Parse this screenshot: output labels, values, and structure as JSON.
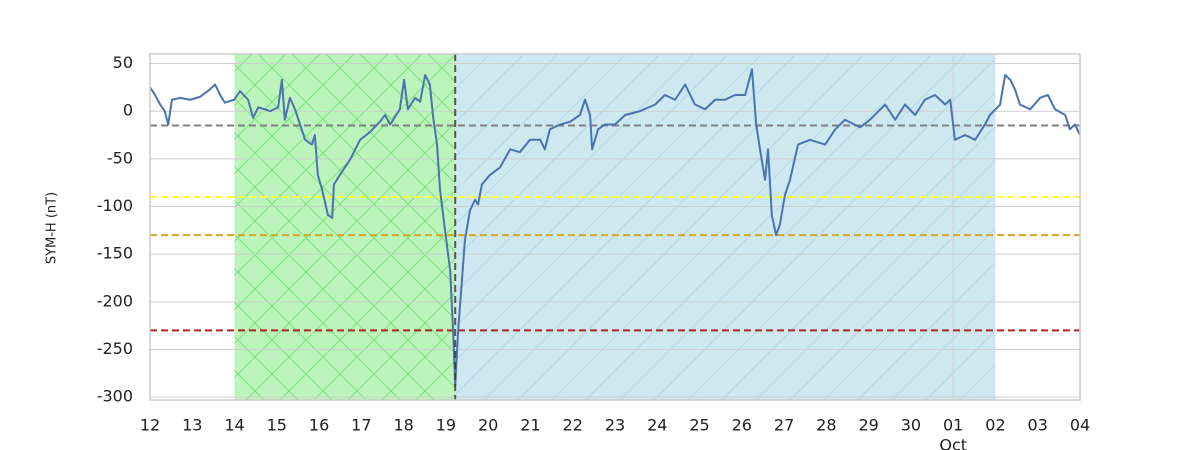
{
  "chart_data": {
    "type": "line",
    "y_label": "SYM-H (nT)",
    "x": [
      0,
      0.12,
      0.24,
      0.35,
      0.43,
      0.52,
      0.71,
      0.95,
      1.18,
      1.42,
      1.54,
      1.66,
      1.77,
      1.99,
      2.13,
      2.32,
      2.44,
      2.56,
      2.72,
      2.84,
      3.03,
      3.12,
      3.19,
      3.31,
      3.43,
      3.55,
      3.67,
      3.83,
      3.9,
      3.97,
      4.07,
      4.21,
      4.31,
      4.35,
      4.49,
      4.73,
      4.97,
      5.2,
      5.44,
      5.56,
      5.68,
      5.91,
      6.01,
      6.1,
      6.27,
      6.39,
      6.51,
      6.62,
      6.7,
      6.79,
      6.86,
      6.98,
      7.1,
      7.17,
      7.22,
      7.29,
      7.38,
      7.45,
      7.57,
      7.69,
      7.76,
      7.85,
      8.04,
      8.28,
      8.52,
      8.75,
      8.99,
      9.23,
      9.34,
      9.46,
      9.7,
      9.94,
      10.17,
      10.29,
      10.41,
      10.46,
      10.6,
      10.76,
      11,
      11.24,
      11.59,
      11.95,
      12.18,
      12.42,
      12.66,
      12.89,
      13.13,
      13.37,
      13.6,
      13.84,
      14.08,
      14.24,
      14.34,
      14.43,
      14.55,
      14.62,
      14.71,
      14.81,
      14.9,
      15.02,
      15.14,
      15.33,
      15.61,
      15.97,
      16.21,
      16.44,
      16.8,
      17.03,
      17.39,
      17.63,
      17.86,
      18.1,
      18.33,
      18.57,
      18.81,
      18.93,
      19.04,
      19.28,
      19.52,
      19.75,
      19.87,
      20.11,
      20.23,
      20.35,
      20.46,
      20.58,
      20.82,
      21.06,
      21.24,
      21.41,
      21.65,
      21.76,
      21.88,
      22
    ],
    "values": [
      25,
      17,
      7,
      0,
      -14,
      12,
      14,
      12,
      15,
      23,
      28,
      17,
      9,
      12,
      21,
      12,
      -7,
      4,
      2,
      0,
      4,
      33,
      -9,
      14,
      2,
      -14,
      -30,
      -35,
      -25,
      -67,
      -82,
      -109,
      -112,
      -77,
      -67,
      -51,
      -30,
      -22,
      -11,
      -4,
      -14,
      2,
      33,
      2,
      14,
      10,
      38,
      28,
      -7,
      -35,
      -82,
      -125,
      -167,
      -230,
      -288,
      -230,
      -177,
      -135,
      -104,
      -93,
      -98,
      -77,
      -67,
      -59,
      -40,
      -43,
      -30,
      -30,
      -40,
      -19,
      -14,
      -11,
      -4,
      12,
      -4,
      -40,
      -19,
      -14,
      -14,
      -4,
      0,
      7,
      17,
      12,
      28,
      7,
      2,
      12,
      12,
      17,
      17,
      44,
      -14,
      -40,
      -72,
      -40,
      -109,
      -130,
      -119,
      -88,
      -72,
      -35,
      -30,
      -35,
      -19,
      -9,
      -17,
      -9,
      7,
      -9,
      7,
      -4,
      12,
      17,
      7,
      12,
      -30,
      -25,
      -30,
      -14,
      -4,
      7,
      38,
      33,
      23,
      7,
      2,
      14,
      17,
      2,
      -4,
      -19,
      -14,
      -25
    ],
    "color": "#4c72b0",
    "xlim": [
      0,
      22
    ],
    "xticks": [
      {
        "value": 0,
        "label": "12"
      },
      {
        "value": 1,
        "label": "13"
      },
      {
        "value": 2,
        "label": "14"
      },
      {
        "value": 3,
        "label": "15"
      },
      {
        "value": 4,
        "label": "16"
      },
      {
        "value": 5,
        "label": "17"
      },
      {
        "value": 6,
        "label": "18"
      },
      {
        "value": 7,
        "label": "19"
      },
      {
        "value": 8,
        "label": "20"
      },
      {
        "value": 9,
        "label": "21"
      },
      {
        "value": 10,
        "label": "22"
      },
      {
        "value": 11,
        "label": "23"
      },
      {
        "value": 12,
        "label": "24"
      },
      {
        "value": 13,
        "label": "25"
      },
      {
        "value": 14,
        "label": "26"
      },
      {
        "value": 15,
        "label": "27"
      },
      {
        "value": 16,
        "label": "28"
      },
      {
        "value": 17,
        "label": "29"
      },
      {
        "value": 18,
        "label": "30"
      },
      {
        "value": 19,
        "label": "01"
      },
      {
        "value": 20,
        "label": "02"
      },
      {
        "value": 21,
        "label": "03"
      },
      {
        "value": 22,
        "label": "04"
      }
    ],
    "x_month_label": {
      "value": 19,
      "label": "Oct"
    },
    "ylim": [
      -303,
      60
    ],
    "yticks": [
      50,
      0,
      -50,
      -100,
      -150,
      -200,
      -250,
      -300
    ],
    "grid": true,
    "shaded_regions": [
      {
        "start": 2,
        "end": 7.22,
        "color": "#90ee90"
      },
      {
        "start": 7.22,
        "end": 20,
        "color": "#add8e6"
      }
    ],
    "vlines": [
      {
        "x": 7.22,
        "color": "#333333"
      }
    ],
    "hlines": [
      {
        "y": -15,
        "color": "#808080"
      },
      {
        "y": -90,
        "color": "#ffff33"
      },
      {
        "y": -130,
        "color": "#daa520"
      },
      {
        "y": -230,
        "color": "#b22222"
      }
    ]
  }
}
